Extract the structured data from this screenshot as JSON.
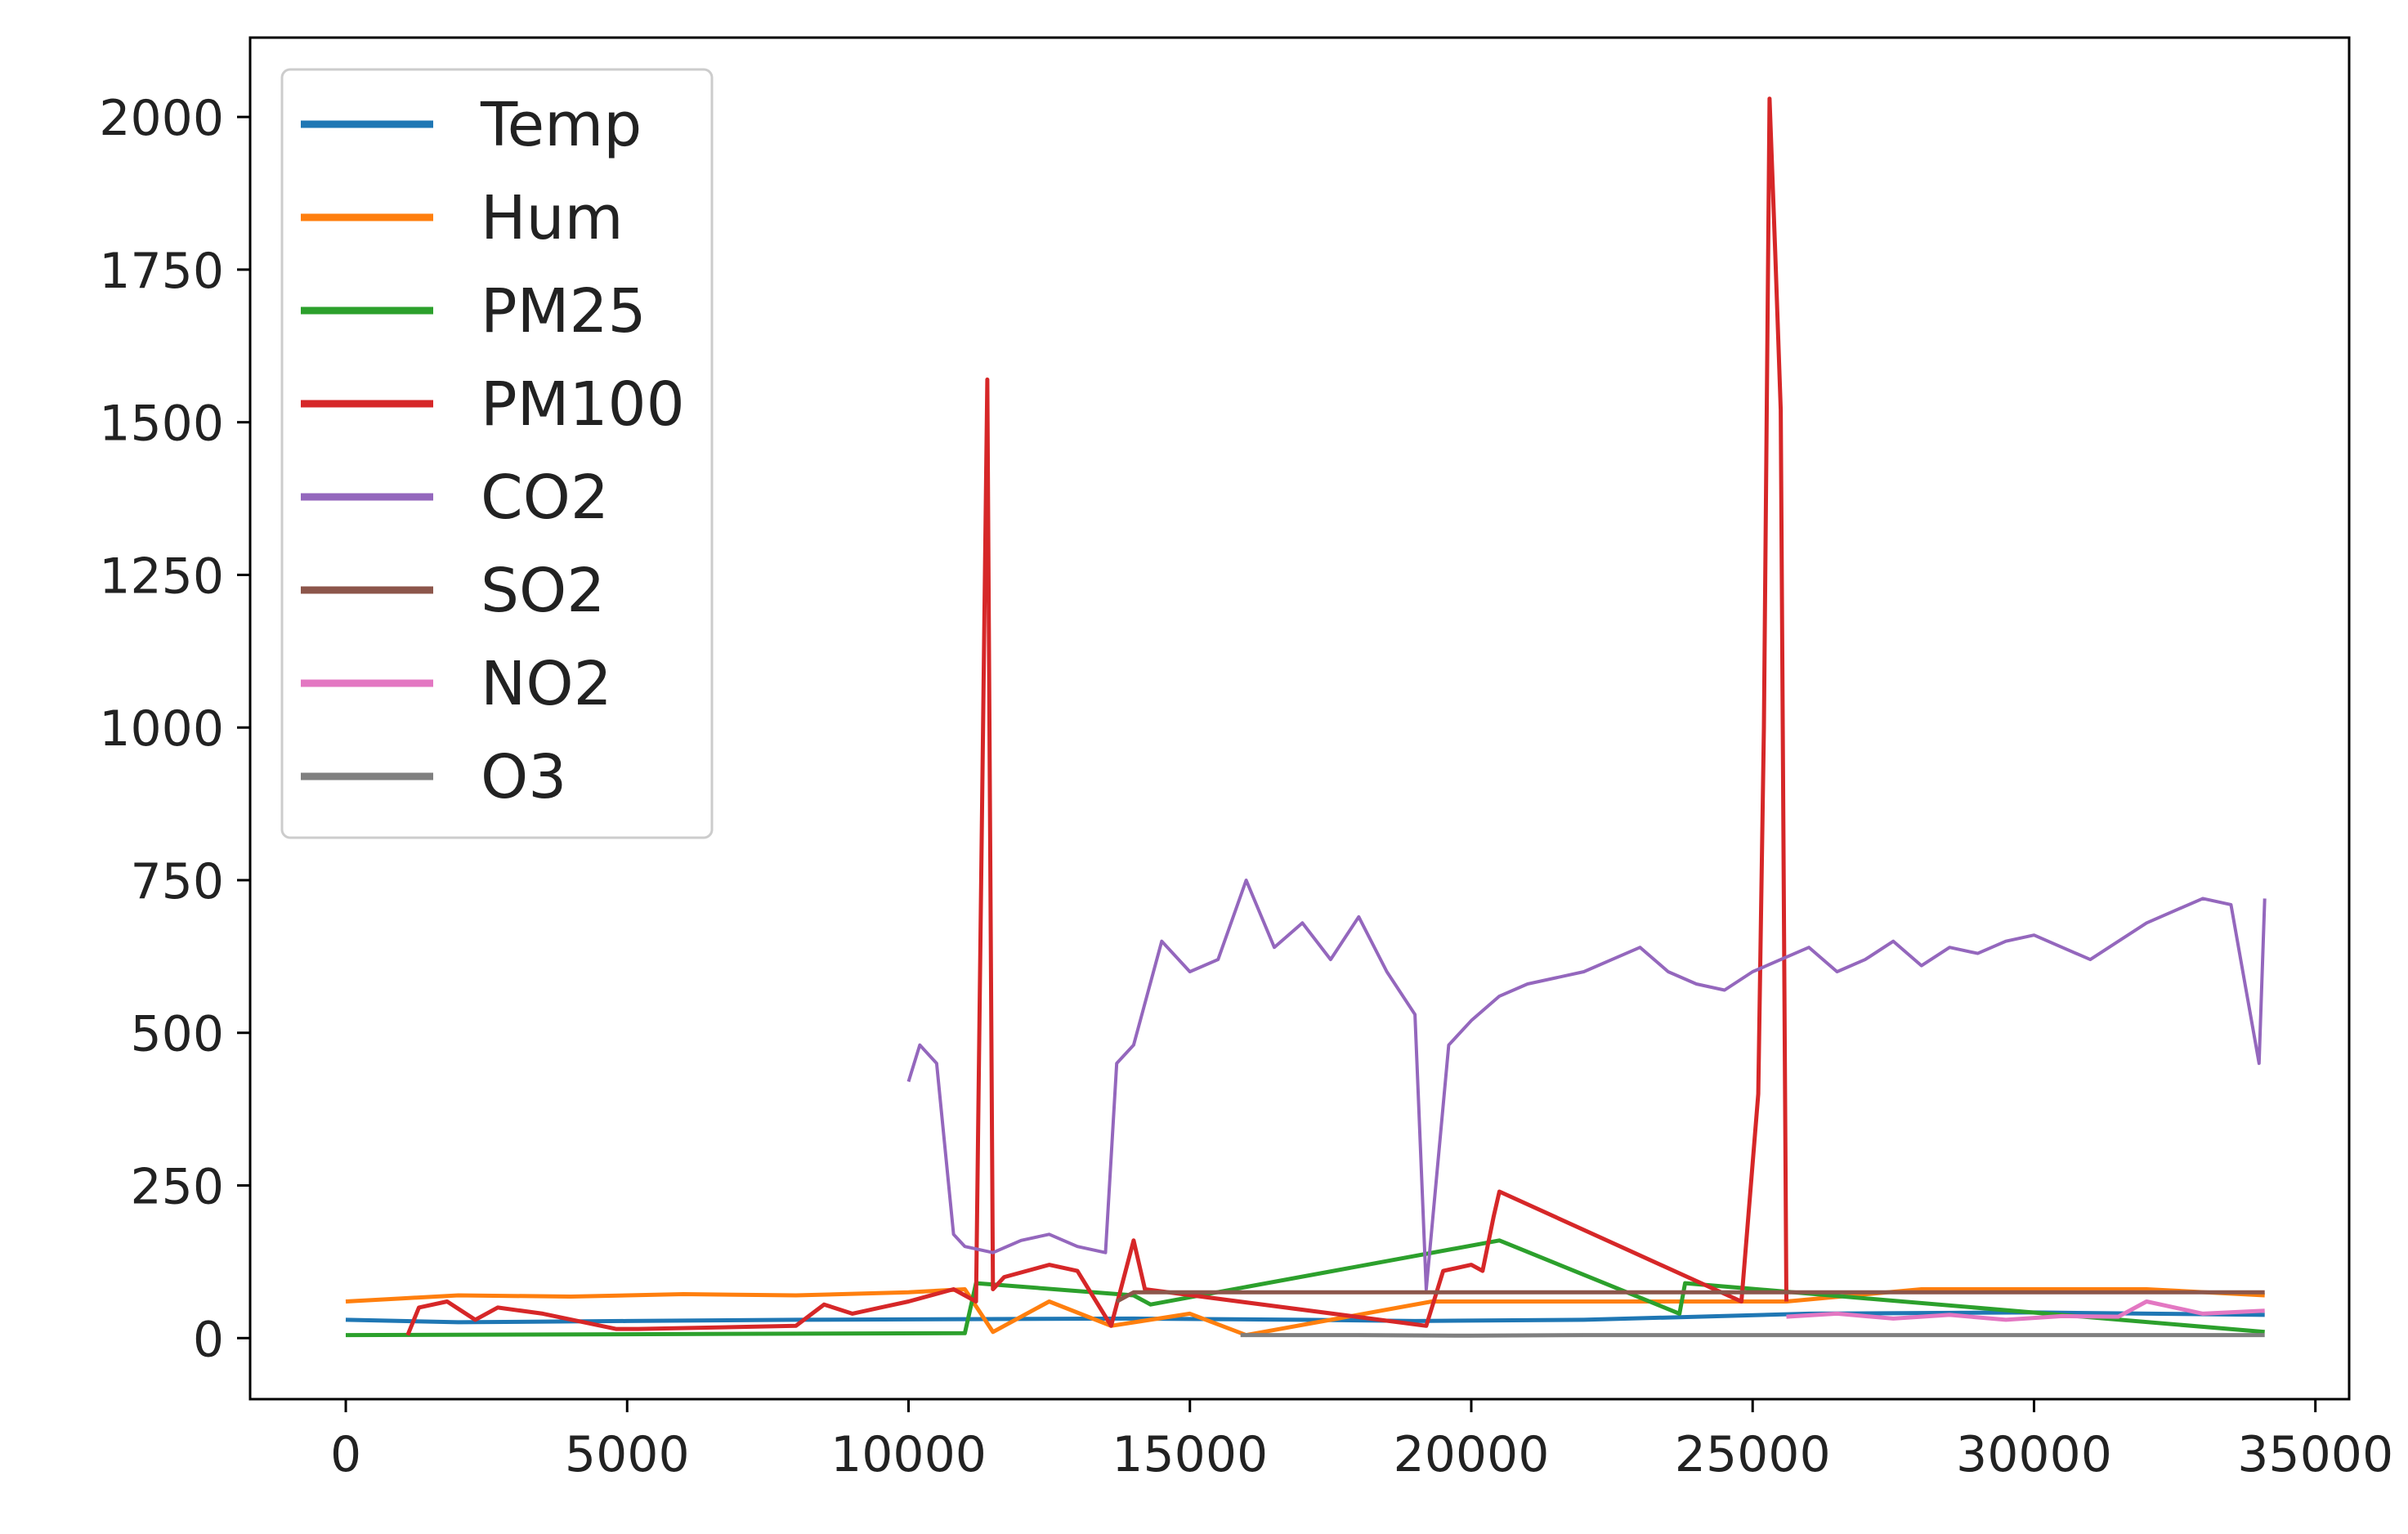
{
  "chart_data": {
    "type": "line",
    "title": "",
    "xlabel": "",
    "ylabel": "",
    "xlim": [
      -1700,
      35600
    ],
    "ylim": [
      -100,
      2130
    ],
    "xticks": [
      0,
      5000,
      10000,
      15000,
      20000,
      25000,
      30000,
      35000
    ],
    "yticks": [
      0,
      250,
      500,
      750,
      1000,
      1250,
      1500,
      1750,
      2000
    ],
    "grid": false,
    "legend_position": "top-left",
    "colors": {
      "Temp": "#1f77b4",
      "Hum": "#ff7f0e",
      "PM25": "#2ca02c",
      "PM100": "#d62728",
      "CO2": "#9467bd",
      "SO2": "#8c564b",
      "NO2": "#e377c2",
      "O3": "#7f7f7f"
    },
    "series": [
      {
        "name": "Temp",
        "x": [
          0,
          2000,
          5000,
          8000,
          11000,
          14000,
          17000,
          19000,
          22000,
          26000,
          30000,
          34100
        ],
        "values": [
          30,
          26,
          28,
          30,
          31,
          32,
          30,
          28,
          30,
          40,
          42,
          38
        ]
      },
      {
        "name": "Hum",
        "x": [
          0,
          1000,
          2000,
          4000,
          6000,
          8000,
          10000,
          11000,
          11500,
          12500,
          13600,
          15000,
          16000,
          19300,
          25600,
          28000,
          32000,
          34100
        ],
        "values": [
          60,
          65,
          70,
          68,
          72,
          70,
          75,
          80,
          10,
          60,
          20,
          40,
          5,
          60,
          60,
          80,
          80,
          70
        ]
      },
      {
        "name": "PM25",
        "x": [
          0,
          11000,
          11200,
          14000,
          14300,
          20500,
          23700,
          23800,
          34100
        ],
        "values": [
          5,
          8,
          90,
          70,
          55,
          160,
          40,
          90,
          10
        ]
      },
      {
        "name": "PM100",
        "x": [
          1100,
          1300,
          1800,
          2300,
          2700,
          3500,
          4800,
          5200,
          8000,
          8500,
          9000,
          9500,
          10000,
          10800,
          11200,
          11400,
          11500,
          11700,
          12500,
          13000,
          13600,
          14000,
          14200,
          19200,
          19500,
          20000,
          20200,
          20400,
          20500,
          24800,
          25100,
          25200,
          25300,
          25400,
          25500,
          25600
        ],
        "values": [
          5,
          50,
          60,
          30,
          50,
          40,
          15,
          15,
          20,
          55,
          40,
          50,
          60,
          80,
          60,
          1570,
          80,
          100,
          120,
          110,
          20,
          160,
          80,
          20,
          110,
          120,
          110,
          200,
          240,
          60,
          400,
          1000,
          2030,
          1780,
          1520,
          60
        ]
      },
      {
        "name": "CO2",
        "x": [
          10000,
          10200,
          10500,
          10800,
          11000,
          11500,
          12000,
          12500,
          13000,
          13500,
          13700,
          14000,
          14500,
          15000,
          15500,
          16000,
          16500,
          17000,
          17500,
          18000,
          18500,
          19000,
          19200,
          19600,
          20000,
          20500,
          21000,
          21500,
          22000,
          22500,
          23000,
          23500,
          24000,
          24500,
          25000,
          25500,
          26000,
          26500,
          27000,
          27500,
          28000,
          28500,
          29000,
          29500,
          30000,
          30500,
          31000,
          31500,
          32000,
          32500,
          33000,
          33500,
          34000,
          34100
        ],
        "values": [
          420,
          480,
          450,
          170,
          150,
          140,
          160,
          170,
          150,
          140,
          450,
          480,
          650,
          600,
          620,
          750,
          640,
          680,
          620,
          690,
          600,
          530,
          80,
          480,
          520,
          560,
          580,
          590,
          600,
          620,
          640,
          600,
          580,
          570,
          600,
          620,
          640,
          600,
          620,
          650,
          610,
          640,
          630,
          650,
          660,
          640,
          620,
          650,
          680,
          700,
          720,
          710,
          450,
          720
        ]
      },
      {
        "name": "SO2",
        "x": [
          13700,
          14000,
          19000,
          24800,
          25600,
          30000,
          34100
        ],
        "values": [
          60,
          75,
          75,
          75,
          75,
          75,
          75
        ]
      },
      {
        "name": "NO2",
        "x": [
          25600,
          26500,
          27500,
          28500,
          29500,
          30500,
          31500,
          32000,
          33000,
          34100
        ],
        "values": [
          35,
          40,
          32,
          38,
          30,
          36,
          35,
          60,
          40,
          45
        ]
      },
      {
        "name": "O3",
        "x": [
          15900,
          18000,
          20000,
          22000,
          24000,
          26000,
          28000,
          30000,
          32000,
          34100
        ],
        "values": [
          5,
          5,
          4,
          5,
          5,
          5,
          5,
          5,
          5,
          5
        ]
      }
    ]
  }
}
